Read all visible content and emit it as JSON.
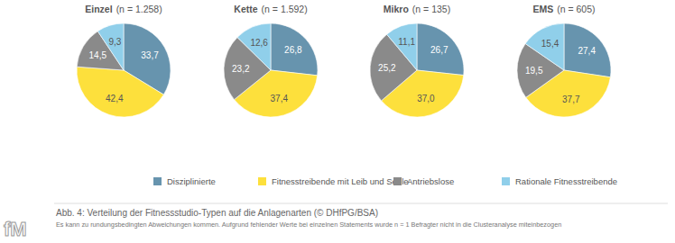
{
  "chart_data": [
    {
      "type": "pie",
      "title": "Einzel",
      "subtitle": "(n = 1.258)",
      "categories": [
        "Disziplinierte",
        "Fitnesstreibende mit Leib und Seele",
        "Antriebslose",
        "Rationale Fitnesstreibende"
      ],
      "values": [
        33.7,
        42.4,
        14.5,
        9.3
      ],
      "value_labels": [
        "33,7",
        "42,4",
        "14,5",
        "9,3"
      ],
      "colors": [
        "#6794ae",
        "#fde03c",
        "#8a8a8a",
        "#90cfea"
      ],
      "data_labels": true,
      "legend": "bottom"
    },
    {
      "type": "pie",
      "title": "Kette",
      "subtitle": "(n = 1.592)",
      "categories": [
        "Disziplinierte",
        "Fitnesstreibende mit Leib und Seele",
        "Antriebslose",
        "Rationale Fitnesstreibende"
      ],
      "values": [
        26.8,
        37.4,
        23.2,
        12.6
      ],
      "value_labels": [
        "26,8",
        "37,4",
        "23,2",
        "12,6"
      ],
      "colors": [
        "#6794ae",
        "#fde03c",
        "#8a8a8a",
        "#90cfea"
      ],
      "data_labels": true
    },
    {
      "type": "pie",
      "title": "Mikro",
      "subtitle": "(n = 135)",
      "categories": [
        "Disziplinierte",
        "Fitnesstreibende mit Leib und Seele",
        "Antriebslose",
        "Rationale Fitnesstreibende"
      ],
      "values": [
        26.7,
        37.0,
        25.2,
        11.1
      ],
      "value_labels": [
        "26,7",
        "37,0",
        "25,2",
        "11,1"
      ],
      "colors": [
        "#6794ae",
        "#fde03c",
        "#8a8a8a",
        "#90cfea"
      ],
      "data_labels": true
    },
    {
      "type": "pie",
      "title": "EMS",
      "subtitle": "(n = 605)",
      "categories": [
        "Disziplinierte",
        "Fitnesstreibende mit Leib und Seele",
        "Antriebslose",
        "Rationale Fitnesstreibende"
      ],
      "values": [
        27.4,
        37.7,
        19.5,
        15.4
      ],
      "value_labels": [
        "27,4",
        "37,7",
        "19,5",
        "15,4"
      ],
      "colors": [
        "#6794ae",
        "#fde03c",
        "#8a8a8a",
        "#90cfea"
      ],
      "data_labels": true
    }
  ],
  "figure": {
    "caption": "Abb. 4: Verteilung der Fitnessstudio-Typen auf die Anlagenarten (© DHfPG/BSA)",
    "note": "Es kann zu rundungsbedingten Abweichungen kommen. Aufgrund fehlender Werte bei einzelnen Statements wurde n = 1 Befragter nicht in die Clusteranalyse miteinbezogen",
    "logo": "fM"
  }
}
